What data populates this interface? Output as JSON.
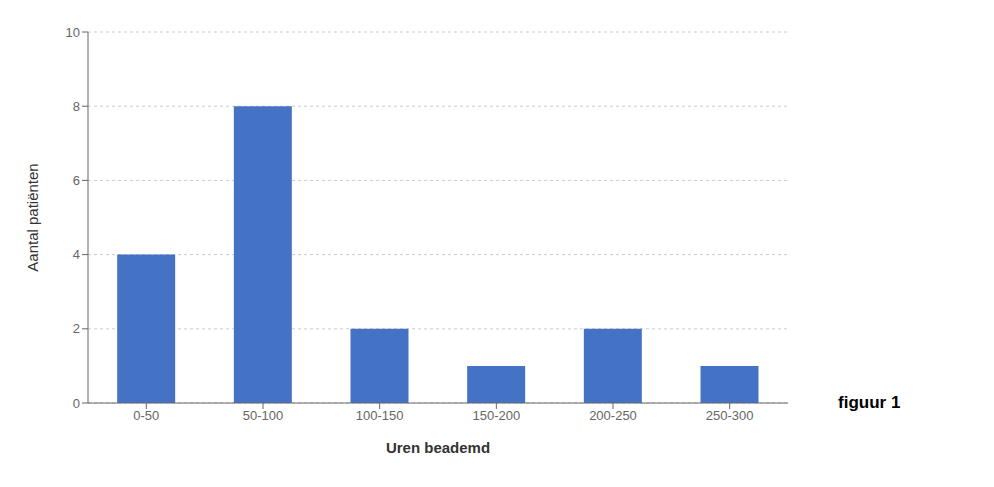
{
  "chart_data": {
    "type": "bar",
    "categories": [
      "0-50",
      "50-100",
      "100-150",
      "150-200",
      "200-250",
      "250-300"
    ],
    "values": [
      4,
      8,
      2,
      1,
      2,
      1
    ],
    "color": "#4472C4",
    "xlabel": "Uren beademd",
    "ylabel": "Aantal patiënten",
    "ylim": [
      0,
      10
    ],
    "yticks": [
      0,
      2,
      4,
      6,
      8,
      10
    ],
    "grid": true,
    "annotations": [
      "figuur 1"
    ]
  }
}
